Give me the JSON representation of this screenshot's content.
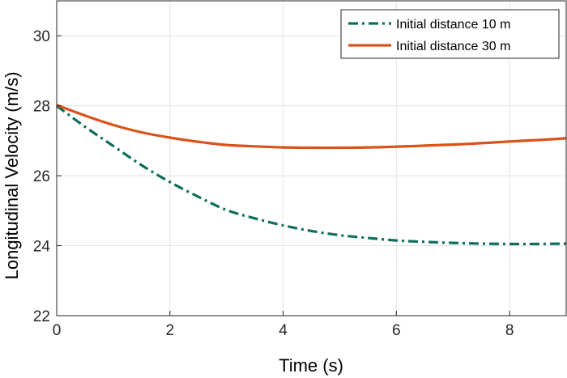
{
  "chart_data": {
    "type": "line",
    "xlabel": "Time (s)",
    "ylabel": "Longitudinal Velocity (m/s)",
    "xlim": [
      0,
      9
    ],
    "ylim": [
      22,
      31
    ],
    "xticks": [
      0,
      2,
      4,
      6,
      8
    ],
    "yticks": [
      22,
      24,
      26,
      28,
      30
    ],
    "grid": true,
    "legend_position": "top-right",
    "series": [
      {
        "name": "Initial distance 10 m",
        "color": "#0E6E5C",
        "line_style": "dash-dot",
        "x": [
          0,
          0.5,
          1,
          1.5,
          2,
          2.5,
          3,
          3.5,
          4,
          4.5,
          5,
          5.5,
          6,
          6.5,
          7,
          7.5,
          8,
          8.5,
          9
        ],
        "y": [
          28.0,
          27.4,
          26.85,
          26.3,
          25.82,
          25.4,
          25.02,
          24.78,
          24.58,
          24.42,
          24.3,
          24.22,
          24.15,
          24.11,
          24.08,
          24.06,
          24.05,
          24.05,
          24.06
        ]
      },
      {
        "name": "Initial distance 30 m",
        "color": "#D95319",
        "line_style": "solid",
        "x": [
          0,
          0.5,
          1,
          1.5,
          2,
          2.5,
          3,
          3.5,
          4,
          4.5,
          5,
          5.5,
          6,
          6.5,
          7,
          7.5,
          8,
          8.5,
          9
        ],
        "y": [
          28.02,
          27.72,
          27.45,
          27.24,
          27.09,
          26.97,
          26.88,
          26.84,
          26.81,
          26.8,
          26.8,
          26.81,
          26.83,
          26.86,
          26.89,
          26.93,
          26.98,
          27.02,
          27.07
        ]
      }
    ]
  }
}
